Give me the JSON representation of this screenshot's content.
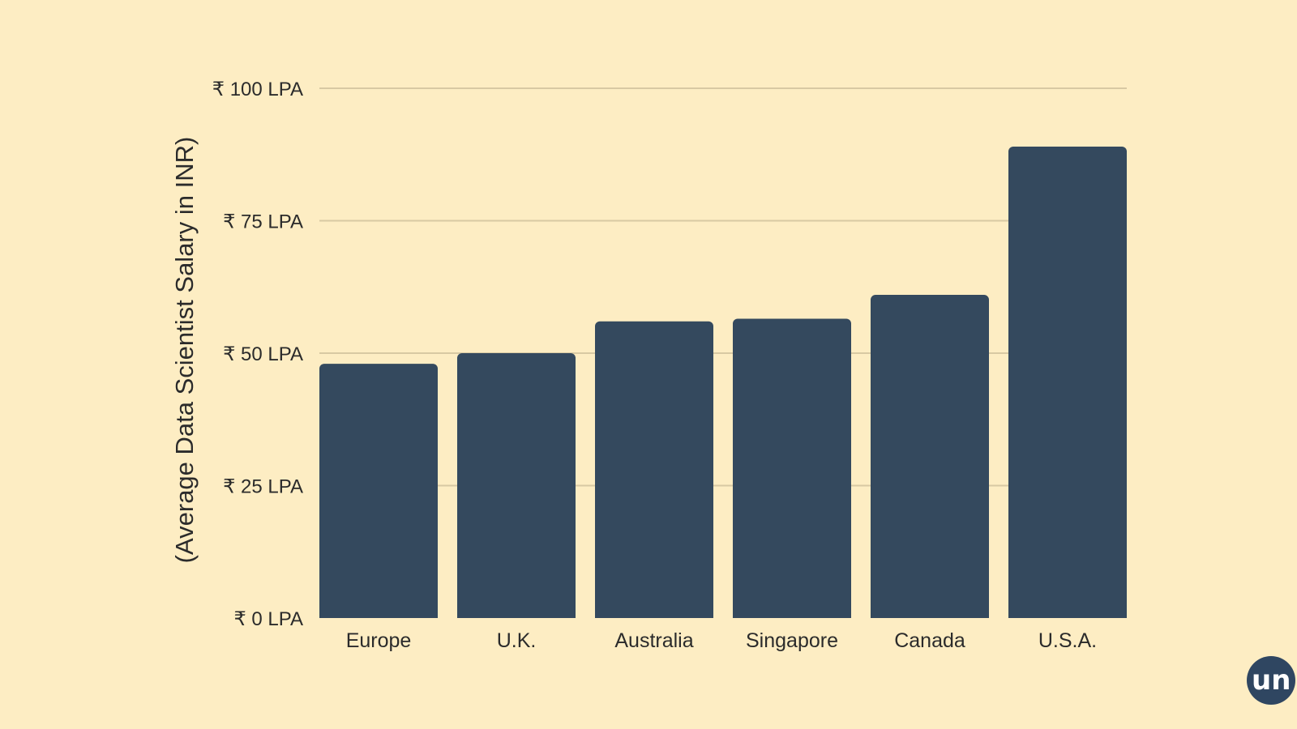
{
  "chart_data": {
    "type": "bar",
    "title": "",
    "xlabel": "",
    "ylabel": "(Average Data Scientist Salary in INR)",
    "categories": [
      "Europe",
      "U.K.",
      "Australia",
      "Singapore",
      "Canada",
      "U.S.A."
    ],
    "values": [
      48,
      50,
      56,
      56.5,
      61,
      89
    ],
    "ylim": [
      0,
      100
    ],
    "yticks": [
      0,
      25,
      50,
      75,
      100
    ],
    "ytick_labels": [
      "₹ 0 LPA",
      "₹ 25 LPA",
      "₹ 50 LPA",
      "₹ 75 LPA",
      "₹ 100 LPA"
    ],
    "grid": true,
    "bar_color": "#34495e",
    "grid_color": "#d8c9a3",
    "background": "#fdedc3"
  },
  "logo": {
    "text": "un",
    "color": "#2f4661"
  }
}
